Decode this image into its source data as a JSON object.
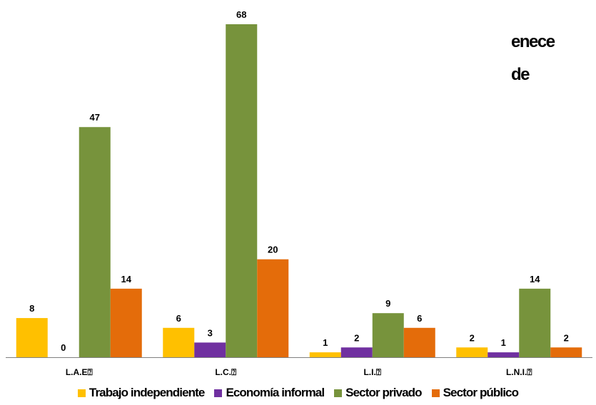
{
  "title_fragment": {
    "line1": "enece",
    "line2": "de"
  },
  "chart_data": {
    "type": "bar",
    "categories": [
      "L.A.E",
      "L.C.",
      "L.I.",
      "L.N.I."
    ],
    "category_suffix": "⍰",
    "series": [
      {
        "name": "Trabajo independiente",
        "color": "#FFC000",
        "values": [
          8,
          6,
          1,
          2
        ]
      },
      {
        "name": "Economía informal",
        "color": "#7030A0",
        "values": [
          0,
          3,
          2,
          1
        ]
      },
      {
        "name": "Sector privado",
        "color": "#77933C",
        "values": [
          47,
          68,
          9,
          14
        ]
      },
      {
        "name": "Sector público",
        "color": "#E46C0A",
        "values": [
          14,
          20,
          6,
          2
        ]
      }
    ],
    "data_labels": true,
    "ylim": [
      0,
      68
    ],
    "grid": false,
    "legend_position": "bottom"
  }
}
